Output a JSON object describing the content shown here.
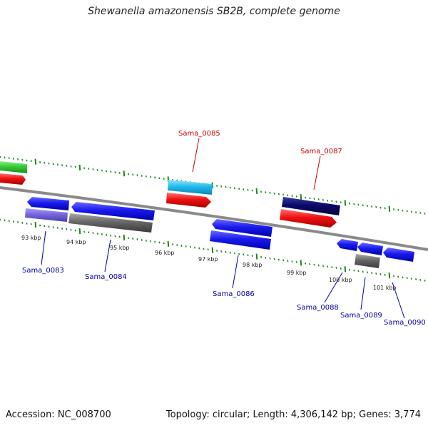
{
  "title": "Shewanella amazonensis SB2B, complete genome",
  "footer": {
    "accession": "Accession: NC_008700",
    "summary": "Topology: circular; Length: 4,306,142 bp; Genes: 3,774"
  },
  "ticks": [
    "93 kbp",
    "94 kbp",
    "95 kbp",
    "96 kbp",
    "97 kbp",
    "98 kbp",
    "99 kbp",
    "100 kbp",
    "101 kbp"
  ],
  "gene_labels": {
    "sama_0083": "Sama_0083",
    "sama_0084": "Sama_0084",
    "sama_0085": "Sama_0085",
    "sama_0086": "Sama_0086",
    "sama_0087": "Sama_0087",
    "sama_0088": "Sama_0088",
    "sama_0089": "Sama_0089",
    "sama_0090": "Sama_0090"
  },
  "colors": {
    "forward_label": "#cc0000",
    "reverse_label": "#0000aa",
    "backbone": "#888888",
    "tick": "#1a8a1a",
    "gene_blue": "#1a1aee",
    "gene_red": "#ee1111",
    "gene_cyan": "#22bbee",
    "gene_navy": "#0a0a6a",
    "gene_green": "#33cc33",
    "gene_gray": "#666666",
    "gene_lavender": "#7766dd"
  }
}
